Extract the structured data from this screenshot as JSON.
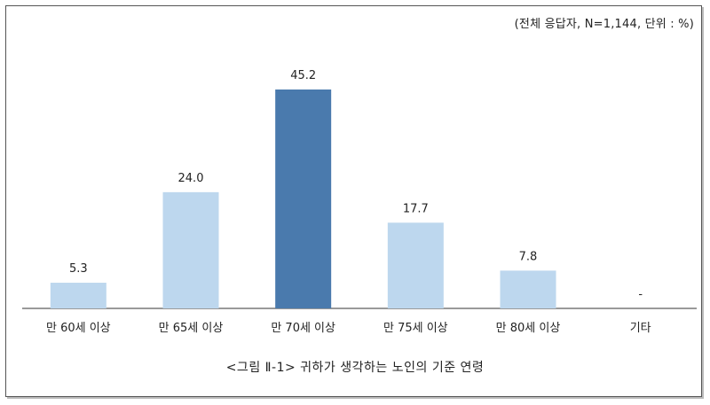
{
  "note": "(전체 응답자, N=1,144, 단위 : %)",
  "caption": "<그림 Ⅱ-1> 귀하가 생각하는 노인의 기준 연령",
  "colors": {
    "bar": "#bdd7ee",
    "highlight": "#4a7aad",
    "axis": "#333333"
  },
  "chart_data": {
    "type": "bar",
    "categories": [
      "만 60세 이상",
      "만 65세 이상",
      "만 70세 이상",
      "만 75세 이상",
      "만 80세 이상",
      "기타"
    ],
    "values": [
      5.3,
      24.0,
      45.2,
      17.7,
      7.8,
      null
    ],
    "value_labels": [
      "5.3",
      "24.0",
      "45.2",
      "17.7",
      "7.8",
      "-"
    ],
    "highlight_index": 2,
    "ylim": [
      0,
      50
    ],
    "grid": false,
    "legend": "none"
  }
}
